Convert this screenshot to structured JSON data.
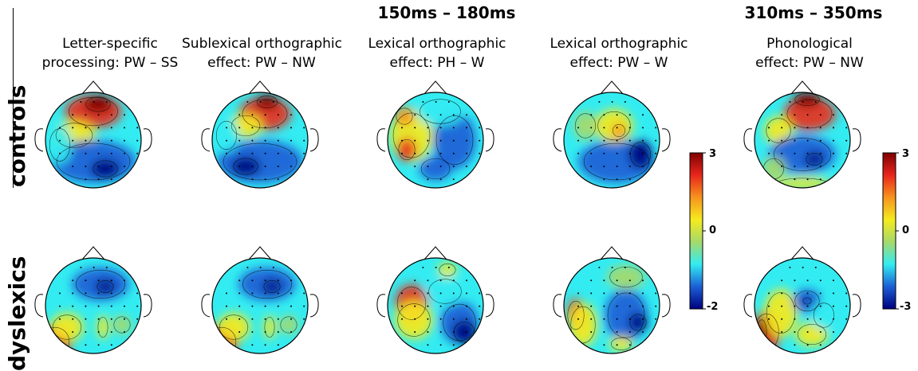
{
  "window_titles": [
    "150ms – 180ms",
    "310ms – 350ms"
  ],
  "columns": [
    {
      "line1": "Letter-specific",
      "line2": "processing: PW – SS"
    },
    {
      "line1": "Sublexical orthographic",
      "line2": "effect: PW – NW"
    },
    {
      "line1": "Lexical orthographic",
      "line2": "effect: PH – W"
    },
    {
      "line1": "Lexical orthographic",
      "line2": "effect:  PW – W"
    },
    {
      "line1": "Phonological",
      "line2": "effect:  PW – NW"
    }
  ],
  "rows": [
    "controls",
    "dyslexics"
  ],
  "colorbars": [
    {
      "top": "3",
      "mid": "0",
      "bottom": "-2"
    },
    {
      "top": "3",
      "mid": "0",
      "bottom": "-3"
    }
  ],
  "colors": {
    "dark_red": "#7f0000",
    "red": "#e8261c",
    "orange": "#f7941d",
    "yellow": "#f5ea1f",
    "green": "#a6d96a",
    "cyan": "#33ecf2",
    "blue": "#1c5fd6",
    "dark_blue": "#00007f"
  },
  "maps": [
    [
      [
        [
          "#e8301e",
          0,
          -0.6,
          0.6,
          0.35
        ],
        [
          "#7f0000",
          0.1,
          -0.75,
          0.3,
          0.18
        ],
        [
          "#f5ea1f",
          -0.4,
          -0.1,
          0.45,
          0.3
        ],
        [
          "#1c5fd6",
          0,
          0.45,
          0.9,
          0.45
        ],
        [
          "#00007f",
          0.25,
          0.6,
          0.3,
          0.2
        ],
        [
          "#33ecf2",
          -0.7,
          0.1,
          0.25,
          0.4
        ]
      ],
      [
        [
          "#e8301e",
          0.1,
          -0.55,
          0.55,
          0.35
        ],
        [
          "#7f0000",
          0.15,
          -0.8,
          0.25,
          0.15
        ],
        [
          "#f5ea1f",
          -0.3,
          -0.3,
          0.35,
          0.25
        ],
        [
          "#1c5fd6",
          0,
          0.45,
          0.9,
          0.45
        ],
        [
          "#00007f",
          -0.3,
          0.55,
          0.3,
          0.2
        ],
        [
          "#33ecf2",
          -0.7,
          -0.1,
          0.25,
          0.35
        ]
      ],
      [
        [
          "#f5ea1f",
          -0.5,
          -0.1,
          0.45,
          0.55
        ],
        [
          "#e8301e",
          -0.6,
          0.2,
          0.2,
          0.25
        ],
        [
          "#1c5fd6",
          0.4,
          0,
          0.45,
          0.6
        ],
        [
          "#33ecf2",
          0.1,
          -0.6,
          0.5,
          0.3
        ],
        [
          "#1c5fd6",
          0,
          0.6,
          0.35,
          0.25
        ],
        [
          "#f7941d",
          -0.65,
          -0.5,
          0.2,
          0.2
        ]
      ],
      [
        [
          "#1c5fd6",
          0.1,
          0.45,
          0.8,
          0.45
        ],
        [
          "#f5ea1f",
          0.05,
          -0.3,
          0.4,
          0.35
        ],
        [
          "#f7941d",
          0.15,
          -0.2,
          0.15,
          0.15
        ],
        [
          "#00007f",
          0.6,
          0.3,
          0.25,
          0.3
        ],
        [
          "#a6d96a",
          -0.55,
          -0.3,
          0.25,
          0.3
        ]
      ],
      [
        [
          "#e8301e",
          0.15,
          -0.55,
          0.55,
          0.35
        ],
        [
          "#7f0000",
          0.1,
          -0.85,
          0.3,
          0.15
        ],
        [
          "#f5ea1f",
          -0.5,
          -0.2,
          0.3,
          0.3
        ],
        [
          "#1c5fd6",
          0,
          0.3,
          0.7,
          0.4
        ],
        [
          "#00007f",
          0.25,
          0.4,
          0.2,
          0.15
        ],
        [
          "#f5ea1f",
          0,
          0.9,
          0.6,
          0.12
        ],
        [
          "#a6d96a",
          -0.6,
          0.6,
          0.25,
          0.25
        ]
      ]
    ],
    [
      [
        [
          "#1c5fd6",
          0.15,
          -0.45,
          0.6,
          0.35
        ],
        [
          "#00007f",
          0.25,
          -0.4,
          0.2,
          0.15
        ],
        [
          "#e8301e",
          -0.8,
          0.75,
          0.35,
          0.35
        ],
        [
          "#f5ea1f",
          -0.55,
          0.45,
          0.35,
          0.3
        ],
        [
          "#f5ea1f",
          0.2,
          0.45,
          0.12,
          0.25
        ],
        [
          "#a6d96a",
          0.6,
          0.4,
          0.2,
          0.2
        ]
      ],
      [
        [
          "#1c5fd6",
          0.15,
          -0.45,
          0.6,
          0.35
        ],
        [
          "#00007f",
          0.25,
          -0.4,
          0.2,
          0.15
        ],
        [
          "#e8301e",
          -0.8,
          0.75,
          0.35,
          0.35
        ],
        [
          "#f5ea1f",
          -0.55,
          0.45,
          0.35,
          0.3
        ],
        [
          "#f5ea1f",
          0.2,
          0.45,
          0.12,
          0.25
        ],
        [
          "#a6d96a",
          0.6,
          0.4,
          0.2,
          0.2
        ]
      ],
      [
        [
          "#e8301e",
          -0.5,
          -0.05,
          0.35,
          0.4
        ],
        [
          "#f5ea1f",
          -0.45,
          0.3,
          0.4,
          0.4
        ],
        [
          "#1c5fd6",
          0.5,
          0.35,
          0.4,
          0.45
        ],
        [
          "#00007f",
          0.6,
          0.55,
          0.25,
          0.25
        ],
        [
          "#f5ea1f",
          0.25,
          -0.75,
          0.2,
          0.15
        ],
        [
          "#33ecf2",
          0.2,
          -0.3,
          0.4,
          0.3
        ]
      ],
      [
        [
          "#e8301e",
          -0.75,
          0.2,
          0.2,
          0.35
        ],
        [
          "#f5ea1f",
          -0.6,
          0.4,
          0.3,
          0.45
        ],
        [
          "#1c5fd6",
          0.3,
          0.2,
          0.45,
          0.55
        ],
        [
          "#f5ea1f",
          0.2,
          0.8,
          0.25,
          0.15
        ],
        [
          "#a6d96a",
          0.3,
          -0.6,
          0.4,
          0.25
        ],
        [
          "#00007f",
          0.55,
          0.35,
          0.2,
          0.2
        ]
      ],
      [
        [
          "#e8301e",
          -0.75,
          0.55,
          0.3,
          0.45
        ],
        [
          "#7f0000",
          -0.85,
          0.55,
          0.12,
          0.3
        ],
        [
          "#f5ea1f",
          -0.45,
          0.15,
          0.35,
          0.5
        ],
        [
          "#1c5fd6",
          0.1,
          -0.1,
          0.3,
          0.25
        ],
        [
          "#00007f",
          0.1,
          -0.1,
          0.1,
          0.08
        ],
        [
          "#f5ea1f",
          0.2,
          0.6,
          0.35,
          0.25
        ],
        [
          "#33ecf2",
          0.45,
          0.2,
          0.25,
          0.3
        ]
      ]
    ]
  ]
}
